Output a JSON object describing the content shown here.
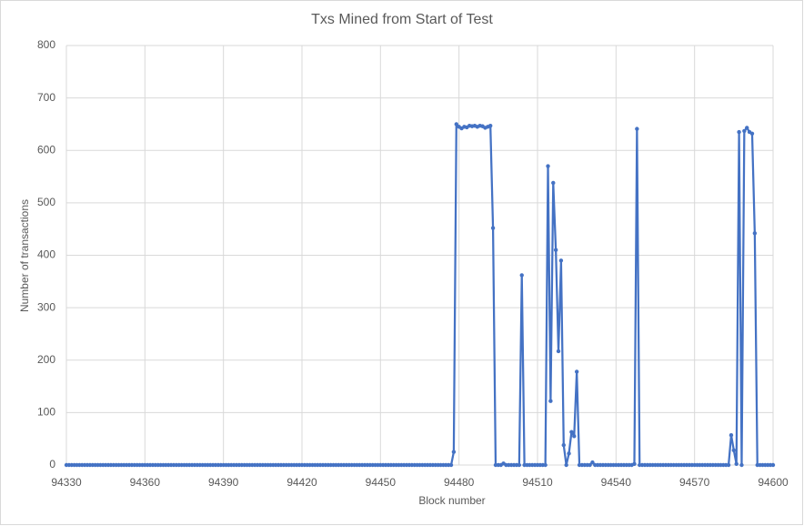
{
  "chart_data": {
    "type": "line",
    "title": "Txs Mined from Start of Test",
    "x_label": "Block number",
    "y_label": "Number of transactions",
    "x": [
      94330,
      94331,
      94332,
      94333,
      94334,
      94335,
      94336,
      94337,
      94338,
      94339,
      94340,
      94341,
      94342,
      94343,
      94344,
      94345,
      94346,
      94347,
      94348,
      94349,
      94350,
      94351,
      94352,
      94353,
      94354,
      94355,
      94356,
      94357,
      94358,
      94359,
      94360,
      94361,
      94362,
      94363,
      94364,
      94365,
      94366,
      94367,
      94368,
      94369,
      94370,
      94371,
      94372,
      94373,
      94374,
      94375,
      94376,
      94377,
      94378,
      94379,
      94380,
      94381,
      94382,
      94383,
      94384,
      94385,
      94386,
      94387,
      94388,
      94389,
      94390,
      94391,
      94392,
      94393,
      94394,
      94395,
      94396,
      94397,
      94398,
      94399,
      94400,
      94401,
      94402,
      94403,
      94404,
      94405,
      94406,
      94407,
      94408,
      94409,
      94410,
      94411,
      94412,
      94413,
      94414,
      94415,
      94416,
      94417,
      94418,
      94419,
      94420,
      94421,
      94422,
      94423,
      94424,
      94425,
      94426,
      94427,
      94428,
      94429,
      94430,
      94431,
      94432,
      94433,
      94434,
      94435,
      94436,
      94437,
      94438,
      94439,
      94440,
      94441,
      94442,
      94443,
      94444,
      94445,
      94446,
      94447,
      94448,
      94449,
      94450,
      94451,
      94452,
      94453,
      94454,
      94455,
      94456,
      94457,
      94458,
      94459,
      94460,
      94461,
      94462,
      94463,
      94464,
      94465,
      94466,
      94467,
      94468,
      94469,
      94470,
      94471,
      94472,
      94473,
      94474,
      94475,
      94476,
      94477,
      94478,
      94479,
      94480,
      94481,
      94482,
      94483,
      94484,
      94485,
      94486,
      94487,
      94488,
      94489,
      94490,
      94491,
      94492,
      94493,
      94494,
      94495,
      94496,
      94497,
      94498,
      94499,
      94500,
      94501,
      94502,
      94503,
      94504,
      94505,
      94506,
      94507,
      94508,
      94509,
      94510,
      94511,
      94512,
      94513,
      94514,
      94515,
      94516,
      94517,
      94518,
      94519,
      94520,
      94521,
      94522,
      94523,
      94524,
      94525,
      94526,
      94527,
      94528,
      94529,
      94530,
      94531,
      94532,
      94533,
      94534,
      94535,
      94536,
      94537,
      94538,
      94539,
      94540,
      94541,
      94542,
      94543,
      94544,
      94545,
      94546,
      94547,
      94548,
      94549,
      94550,
      94551,
      94552,
      94553,
      94554,
      94555,
      94556,
      94557,
      94558,
      94559,
      94560,
      94561,
      94562,
      94563,
      94564,
      94565,
      94566,
      94567,
      94568,
      94569,
      94570,
      94571,
      94572,
      94573,
      94574,
      94575,
      94576,
      94577,
      94578,
      94579,
      94580,
      94581,
      94582,
      94583,
      94584,
      94585,
      94586,
      94587,
      94588,
      94589,
      94590,
      94591,
      94592,
      94593,
      94594,
      94595,
      94596,
      94597,
      94598,
      94599,
      94600
    ],
    "series": [
      {
        "color": "#4472c4",
        "values": [
          0,
          0,
          0,
          0,
          0,
          0,
          0,
          0,
          0,
          0,
          0,
          0,
          0,
          0,
          0,
          0,
          0,
          0,
          0,
          0,
          0,
          0,
          0,
          0,
          0,
          0,
          0,
          0,
          0,
          0,
          0,
          0,
          0,
          0,
          0,
          0,
          0,
          0,
          0,
          0,
          0,
          0,
          0,
          0,
          0,
          0,
          0,
          0,
          0,
          0,
          0,
          0,
          0,
          0,
          0,
          0,
          0,
          0,
          0,
          0,
          0,
          0,
          0,
          0,
          0,
          0,
          0,
          0,
          0,
          0,
          0,
          0,
          0,
          0,
          0,
          0,
          0,
          0,
          0,
          0,
          0,
          0,
          0,
          0,
          0,
          0,
          0,
          0,
          0,
          0,
          0,
          0,
          0,
          0,
          0,
          0,
          0,
          0,
          0,
          0,
          0,
          0,
          0,
          0,
          0,
          0,
          0,
          0,
          0,
          0,
          0,
          0,
          0,
          0,
          0,
          0,
          0,
          0,
          0,
          0,
          0,
          0,
          0,
          0,
          0,
          0,
          0,
          0,
          0,
          0,
          0,
          0,
          0,
          0,
          0,
          0,
          0,
          0,
          0,
          0,
          0,
          0,
          0,
          0,
          0,
          0,
          0,
          0,
          25,
          650,
          645,
          642,
          645,
          644,
          647,
          646,
          647,
          645,
          647,
          646,
          643,
          645,
          647,
          452,
          0,
          0,
          0,
          3,
          0,
          0,
          0,
          0,
          0,
          0,
          362,
          0,
          0,
          0,
          0,
          0,
          0,
          0,
          0,
          0,
          570,
          122,
          538,
          410,
          217,
          390,
          38,
          0,
          22,
          63,
          55,
          178,
          0,
          0,
          0,
          0,
          0,
          5,
          0,
          0,
          0,
          0,
          0,
          0,
          0,
          0,
          0,
          0,
          0,
          0,
          0,
          0,
          0,
          2,
          641,
          0,
          0,
          0,
          0,
          0,
          0,
          0,
          0,
          0,
          0,
          0,
          0,
          0,
          0,
          0,
          0,
          0,
          0,
          0,
          0,
          0,
          0,
          0,
          0,
          0,
          0,
          0,
          0,
          0,
          0,
          0,
          0,
          0,
          0,
          0,
          57,
          28,
          2,
          635,
          0,
          637,
          643,
          635,
          632,
          442,
          0,
          0,
          0,
          0,
          0,
          0,
          0
        ]
      }
    ],
    "xlim": [
      94330,
      94600
    ],
    "xticks": [
      94330,
      94360,
      94390,
      94420,
      94450,
      94480,
      94510,
      94540,
      94570,
      94600
    ],
    "ylim": [
      0,
      800
    ],
    "yticks": [
      0,
      100,
      200,
      300,
      400,
      500,
      600,
      700,
      800
    ],
    "grid": true
  }
}
